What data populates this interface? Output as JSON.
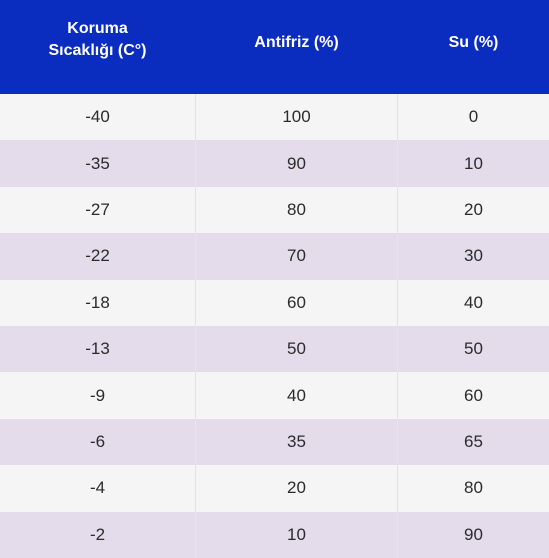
{
  "header": {
    "col1_line1": "Koruma",
    "col1_line2": "Sıcaklığı (C°)",
    "col2": "Antifriz (%)",
    "col3": "Su (%)"
  },
  "rows": [
    {
      "temp": "-40",
      "antifreeze": "100",
      "water": "0"
    },
    {
      "temp": "-35",
      "antifreeze": "90",
      "water": "10"
    },
    {
      "temp": "-27",
      "antifreeze": "80",
      "water": "20"
    },
    {
      "temp": "-22",
      "antifreeze": "70",
      "water": "30"
    },
    {
      "temp": "-18",
      "antifreeze": "60",
      "water": "40"
    },
    {
      "temp": "-13",
      "antifreeze": "50",
      "water": "50"
    },
    {
      "temp": "-9",
      "antifreeze": "40",
      "water": "60"
    },
    {
      "temp": "-6",
      "antifreeze": "35",
      "water": "65"
    },
    {
      "temp": "-4",
      "antifreeze": "20",
      "water": "80"
    },
    {
      "temp": "-2",
      "antifreeze": "10",
      "water": "90"
    }
  ],
  "colors": {
    "header_bg": "#0a2dbf",
    "row_odd_bg": "#f5f5f5",
    "row_even_bg": "#e4dbeb"
  }
}
